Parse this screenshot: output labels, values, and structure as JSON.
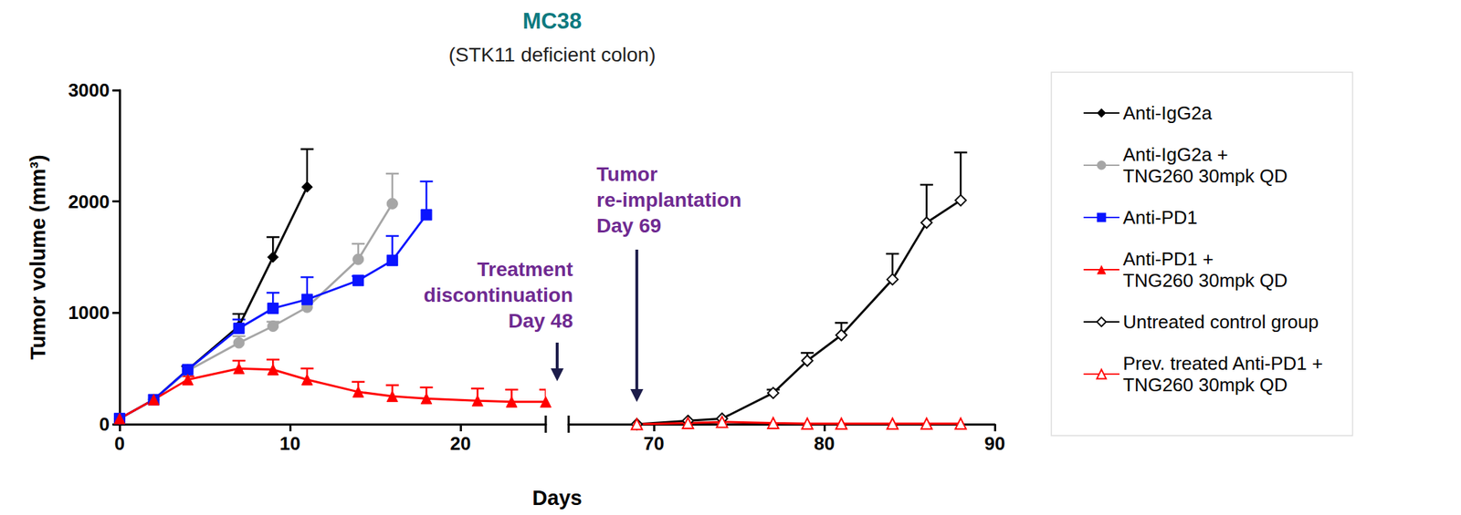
{
  "chart_data": {
    "type": "line",
    "title": "MC38",
    "subtitle": "(STK11 deficient colon)",
    "x_label": "Days",
    "y_label": "Tumor volume (mm³)",
    "xlim": [
      0,
      90
    ],
    "x_break": [
      25,
      65
    ],
    "xticks": [
      0,
      10,
      20,
      70,
      80,
      90
    ],
    "ylim": [
      0,
      3000
    ],
    "yticks": [
      0,
      1000,
      2000,
      3000
    ],
    "grid": false,
    "legend": "right",
    "annotations": [
      "Treatment\ndiscontinuation\nDay 48",
      "Tumor\nre-implantation\nDay 69"
    ],
    "series": [
      {
        "name": "Anti-IgG2a",
        "color": "#000000",
        "marker": "diamond",
        "x": [
          0,
          2,
          4,
          7,
          9,
          11
        ],
        "values": [
          50,
          220,
          490,
          880,
          1500,
          2130
        ],
        "errors": [
          null,
          null,
          30,
          110,
          180,
          340
        ]
      },
      {
        "name": "Anti-IgG2a +\nTNG260 30mpk QD",
        "color": "#a6a6a6",
        "marker": "circle",
        "x": [
          0,
          2,
          4,
          7,
          9,
          11,
          14,
          16
        ],
        "values": [
          50,
          220,
          480,
          730,
          880,
          1050,
          1480,
          1980
        ],
        "errors": [
          null,
          null,
          null,
          60,
          40,
          60,
          140,
          270
        ]
      },
      {
        "name": "Anti-PD1",
        "color": "#0a14ff",
        "marker": "square",
        "x": [
          0,
          2,
          4,
          7,
          9,
          11,
          14,
          16,
          18
        ],
        "values": [
          50,
          220,
          490,
          860,
          1040,
          1120,
          1290,
          1470,
          1880
        ],
        "errors": [
          null,
          null,
          null,
          80,
          140,
          200,
          40,
          220,
          300
        ]
      },
      {
        "name": "Anti-PD1 +\nTNG260 30mpk QD",
        "color": "#ff0000",
        "marker": "triangle",
        "x": [
          0,
          2,
          4,
          7,
          9,
          11,
          14,
          16,
          18,
          21,
          23,
          25
        ],
        "values": [
          50,
          220,
          400,
          500,
          490,
          400,
          290,
          250,
          230,
          210,
          200,
          200
        ],
        "errors": [
          null,
          null,
          30,
          70,
          90,
          100,
          90,
          100,
          100,
          110,
          110,
          110
        ]
      },
      {
        "name": "Untreated control group",
        "color": "#000000",
        "marker": "open_diamond",
        "x": [
          69,
          72,
          74,
          77,
          79,
          81,
          84,
          86,
          88
        ],
        "values": [
          0,
          30,
          50,
          280,
          570,
          800,
          1300,
          1810,
          2010
        ],
        "errors": [
          null,
          null,
          null,
          30,
          70,
          110,
          230,
          340,
          430
        ]
      },
      {
        "name": "Prev. treated Anti-PD1 +\nTNG260 30mpk QD",
        "color": "#ff0000",
        "marker": "open_triangle",
        "x": [
          69,
          72,
          74,
          77,
          79,
          81,
          84,
          86,
          88
        ],
        "values": [
          0,
          10,
          20,
          10,
          5,
          5,
          5,
          5,
          5
        ],
        "errors": [
          null,
          null,
          null,
          null,
          null,
          null,
          null,
          null,
          null
        ]
      }
    ]
  }
}
